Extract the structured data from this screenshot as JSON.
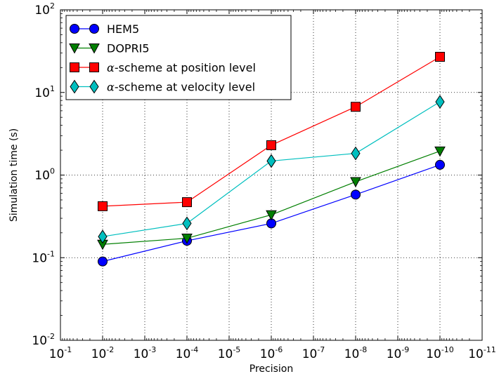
{
  "chart_data": {
    "type": "line",
    "xlabel": "Precision",
    "ylabel": "Simulation time (s)",
    "x_scale": "log",
    "y_scale": "log",
    "x_axis_inverted": true,
    "xlim": [
      0.1,
      1e-11
    ],
    "ylim": [
      0.01,
      100
    ],
    "grid": true,
    "legend_position": "top-left",
    "x_ticks": [
      {
        "base": "10",
        "exp": "-1"
      },
      {
        "base": "10",
        "exp": "-2"
      },
      {
        "base": "10",
        "exp": "-3"
      },
      {
        "base": "10",
        "exp": "-4"
      },
      {
        "base": "10",
        "exp": "-5"
      },
      {
        "base": "10",
        "exp": "-6"
      },
      {
        "base": "10",
        "exp": "-7"
      },
      {
        "base": "10",
        "exp": "-8"
      },
      {
        "base": "10",
        "exp": "-9"
      },
      {
        "base": "10",
        "exp": "-10"
      },
      {
        "base": "10",
        "exp": "-11"
      }
    ],
    "y_ticks": [
      {
        "base": "10",
        "exp": "-2"
      },
      {
        "base": "10",
        "exp": "-1"
      },
      {
        "base": "10",
        "exp": "0"
      },
      {
        "base": "10",
        "exp": "1"
      },
      {
        "base": "10",
        "exp": "2"
      }
    ],
    "x": [
      0.01,
      0.0001,
      1e-06,
      1e-08,
      1e-10
    ],
    "series": [
      {
        "name": "HEM5",
        "greek": "",
        "color": "#0000ff",
        "marker": "circle",
        "values": [
          0.09,
          0.16,
          0.26,
          0.58,
          1.33
        ]
      },
      {
        "name": "DOPRI5",
        "greek": "",
        "color": "#007f00",
        "marker": "triangle-down",
        "values": [
          0.145,
          0.172,
          0.33,
          0.83,
          1.95
        ]
      },
      {
        "name": "-scheme at position level",
        "greek": "α",
        "color": "#ff0000",
        "marker": "square",
        "values": [
          0.42,
          0.47,
          2.3,
          6.7,
          27
        ]
      },
      {
        "name": "-scheme at velocity level",
        "greek": "α",
        "color": "#00bfbf",
        "marker": "diamond",
        "values": [
          0.18,
          0.26,
          1.48,
          1.83,
          7.7
        ]
      }
    ]
  }
}
